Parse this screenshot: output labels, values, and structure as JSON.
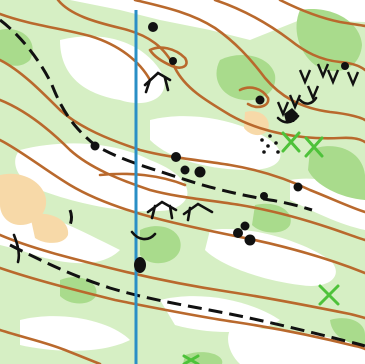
{
  "map": {
    "type": "orienteering-map",
    "colors": {
      "background_open": "#ffffff",
      "vegetation_light": "#d6efc4",
      "vegetation_medium": "#a9db8c",
      "rough_open": "#f7d9a8",
      "contour": "#b9692d",
      "path": "#111111",
      "magnetic_north_line": "#2a8fc6",
      "boulder": "#111111",
      "special_vegetation_feature": "#4ec23a"
    },
    "symbols": [
      "contour-line",
      "index-contour",
      "dashed-track",
      "magnetic-north-line",
      "boulder",
      "rock-pit",
      "small-knoll",
      "cliff",
      "special-vegetation-feature"
    ]
  }
}
